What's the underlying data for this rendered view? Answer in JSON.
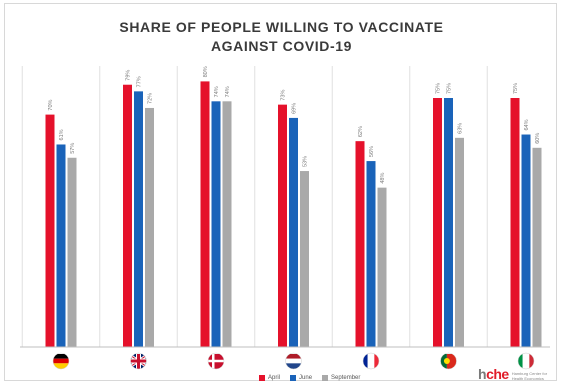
{
  "title_line1": "SHARE OF PEOPLE WILLING TO VACCINATE",
  "title_line2": "AGAINST COVID-19",
  "colors": {
    "april": "#e5112b",
    "june": "#1a63b9",
    "september": "#a9a9a9"
  },
  "chart_data": {
    "type": "bar",
    "categories": [
      "Germany",
      "United Kingdom",
      "Denmark",
      "Netherlands",
      "France",
      "Portugal",
      "Italy"
    ],
    "series": [
      {
        "name": "April",
        "values": [
          70,
          79,
          80,
          73,
          62,
          75,
          75
        ]
      },
      {
        "name": "June",
        "values": [
          61,
          77,
          74,
          69,
          56,
          75,
          64
        ]
      },
      {
        "name": "September",
        "values": [
          57,
          72,
          74,
          53,
          48,
          63,
          60
        ]
      }
    ],
    "ylim": [
      0,
      100
    ],
    "legend_position": "bottom",
    "grid": false
  },
  "logo": {
    "mark_prefix": "h",
    "mark_accent": "che",
    "subtitle": "Hamburg Center for Health Economics"
  }
}
